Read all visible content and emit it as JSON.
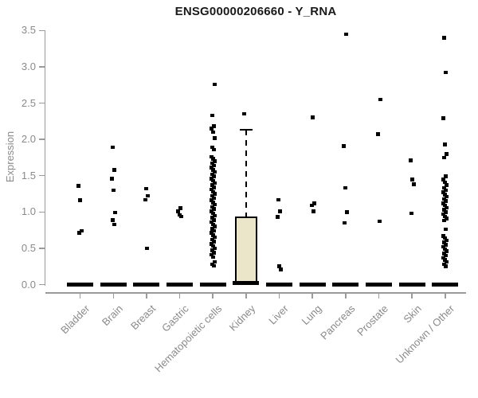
{
  "title": "ENSG00000206660 - Y_RNA",
  "colors": {
    "point": "#000000",
    "box_fill": "#EBE5CA",
    "box_border": "#000000",
    "axis_line": "#9b9b9b",
    "label_text": "#8a8a8a",
    "title_text": "#1a1a1a",
    "background": "#ffffff"
  },
  "chart_data": {
    "type": "scatter",
    "subtype": "strip-plot-with-boxplot",
    "title": "ENSG00000206660 - Y_RNA",
    "xlabel": "",
    "ylabel": "Expression",
    "ylim": [
      0,
      3.5
    ],
    "yticks": [
      "0.0",
      "0.5",
      "1.0",
      "1.5",
      "2.0",
      "2.5",
      "3.0",
      "3.5"
    ],
    "grid": "off",
    "legend": "none",
    "categories": [
      "Bladder",
      "Brain",
      "Breast",
      "Gastric",
      "Hematopoietic cells",
      "Kidney",
      "Liver",
      "Lung",
      "Pancreas",
      "Prostate",
      "Skin",
      "Unknown / Other"
    ],
    "series": [
      {
        "category": "Bladder",
        "zero_cluster": true,
        "points": [
          1.36,
          1.16,
          0.74,
          0.71
        ]
      },
      {
        "category": "Brain",
        "zero_cluster": true,
        "points": [
          1.89,
          1.58,
          1.46,
          1.3,
          0.99,
          0.89,
          0.83
        ]
      },
      {
        "category": "Breast",
        "zero_cluster": true,
        "points": [
          1.32,
          1.22,
          1.17,
          0.5
        ]
      },
      {
        "category": "Gastric",
        "zero_cluster": true,
        "points": [
          1.05,
          1.01,
          0.96,
          0.94
        ]
      },
      {
        "category": "Hematopoietic cells",
        "zero_cluster": true,
        "points": [
          2.76,
          2.33,
          2.18,
          2.15,
          2.1,
          2.02,
          1.89,
          1.86,
          1.76,
          1.73,
          1.7,
          1.67,
          1.64,
          1.61,
          1.58,
          1.55,
          1.52,
          1.49,
          1.46,
          1.43,
          1.4,
          1.37,
          1.34,
          1.31,
          1.28,
          1.25,
          1.22,
          1.19,
          1.16,
          1.13,
          1.1,
          1.07,
          1.04,
          1.01,
          0.98,
          0.95,
          0.92,
          0.89,
          0.86,
          0.83,
          0.8,
          0.77,
          0.74,
          0.71,
          0.68,
          0.65,
          0.62,
          0.59,
          0.56,
          0.53,
          0.5,
          0.47,
          0.44,
          0.41,
          0.38,
          0.31,
          0.28,
          0.26
        ]
      },
      {
        "category": "Kidney",
        "zero_cluster": true,
        "points": [
          2.35
        ],
        "box": {
          "whisker_high": 2.13,
          "q3": 0.94,
          "median": 0.02,
          "q1": 0.0,
          "whisker_low": 0.0
        }
      },
      {
        "category": "Liver",
        "zero_cluster": true,
        "points": [
          1.17,
          1.01,
          0.93,
          0.25,
          0.21
        ]
      },
      {
        "category": "Lung",
        "zero_cluster": true,
        "points": [
          2.3,
          1.12,
          1.09,
          1.01
        ]
      },
      {
        "category": "Pancreas",
        "zero_cluster": true,
        "points": [
          3.45,
          1.91,
          1.33,
          1.0,
          0.85
        ]
      },
      {
        "category": "Prostate",
        "zero_cluster": true,
        "points": [
          2.55,
          2.07,
          0.87
        ]
      },
      {
        "category": "Skin",
        "zero_cluster": true,
        "points": [
          1.71,
          1.45,
          1.38,
          0.98
        ]
      },
      {
        "category": "Unknown / Other",
        "zero_cluster": true,
        "points": [
          3.4,
          2.92,
          2.29,
          1.93,
          1.8,
          1.75,
          1.49,
          1.45,
          1.41,
          1.37,
          1.33,
          1.3,
          1.27,
          1.24,
          1.21,
          1.18,
          1.15,
          1.12,
          1.09,
          1.06,
          1.03,
          1.0,
          0.97,
          0.94,
          0.91,
          0.88,
          0.76,
          0.67,
          0.64,
          0.61,
          0.58,
          0.55,
          0.52,
          0.49,
          0.46,
          0.43,
          0.4,
          0.37,
          0.34,
          0.31,
          0.28,
          0.25
        ]
      }
    ]
  }
}
